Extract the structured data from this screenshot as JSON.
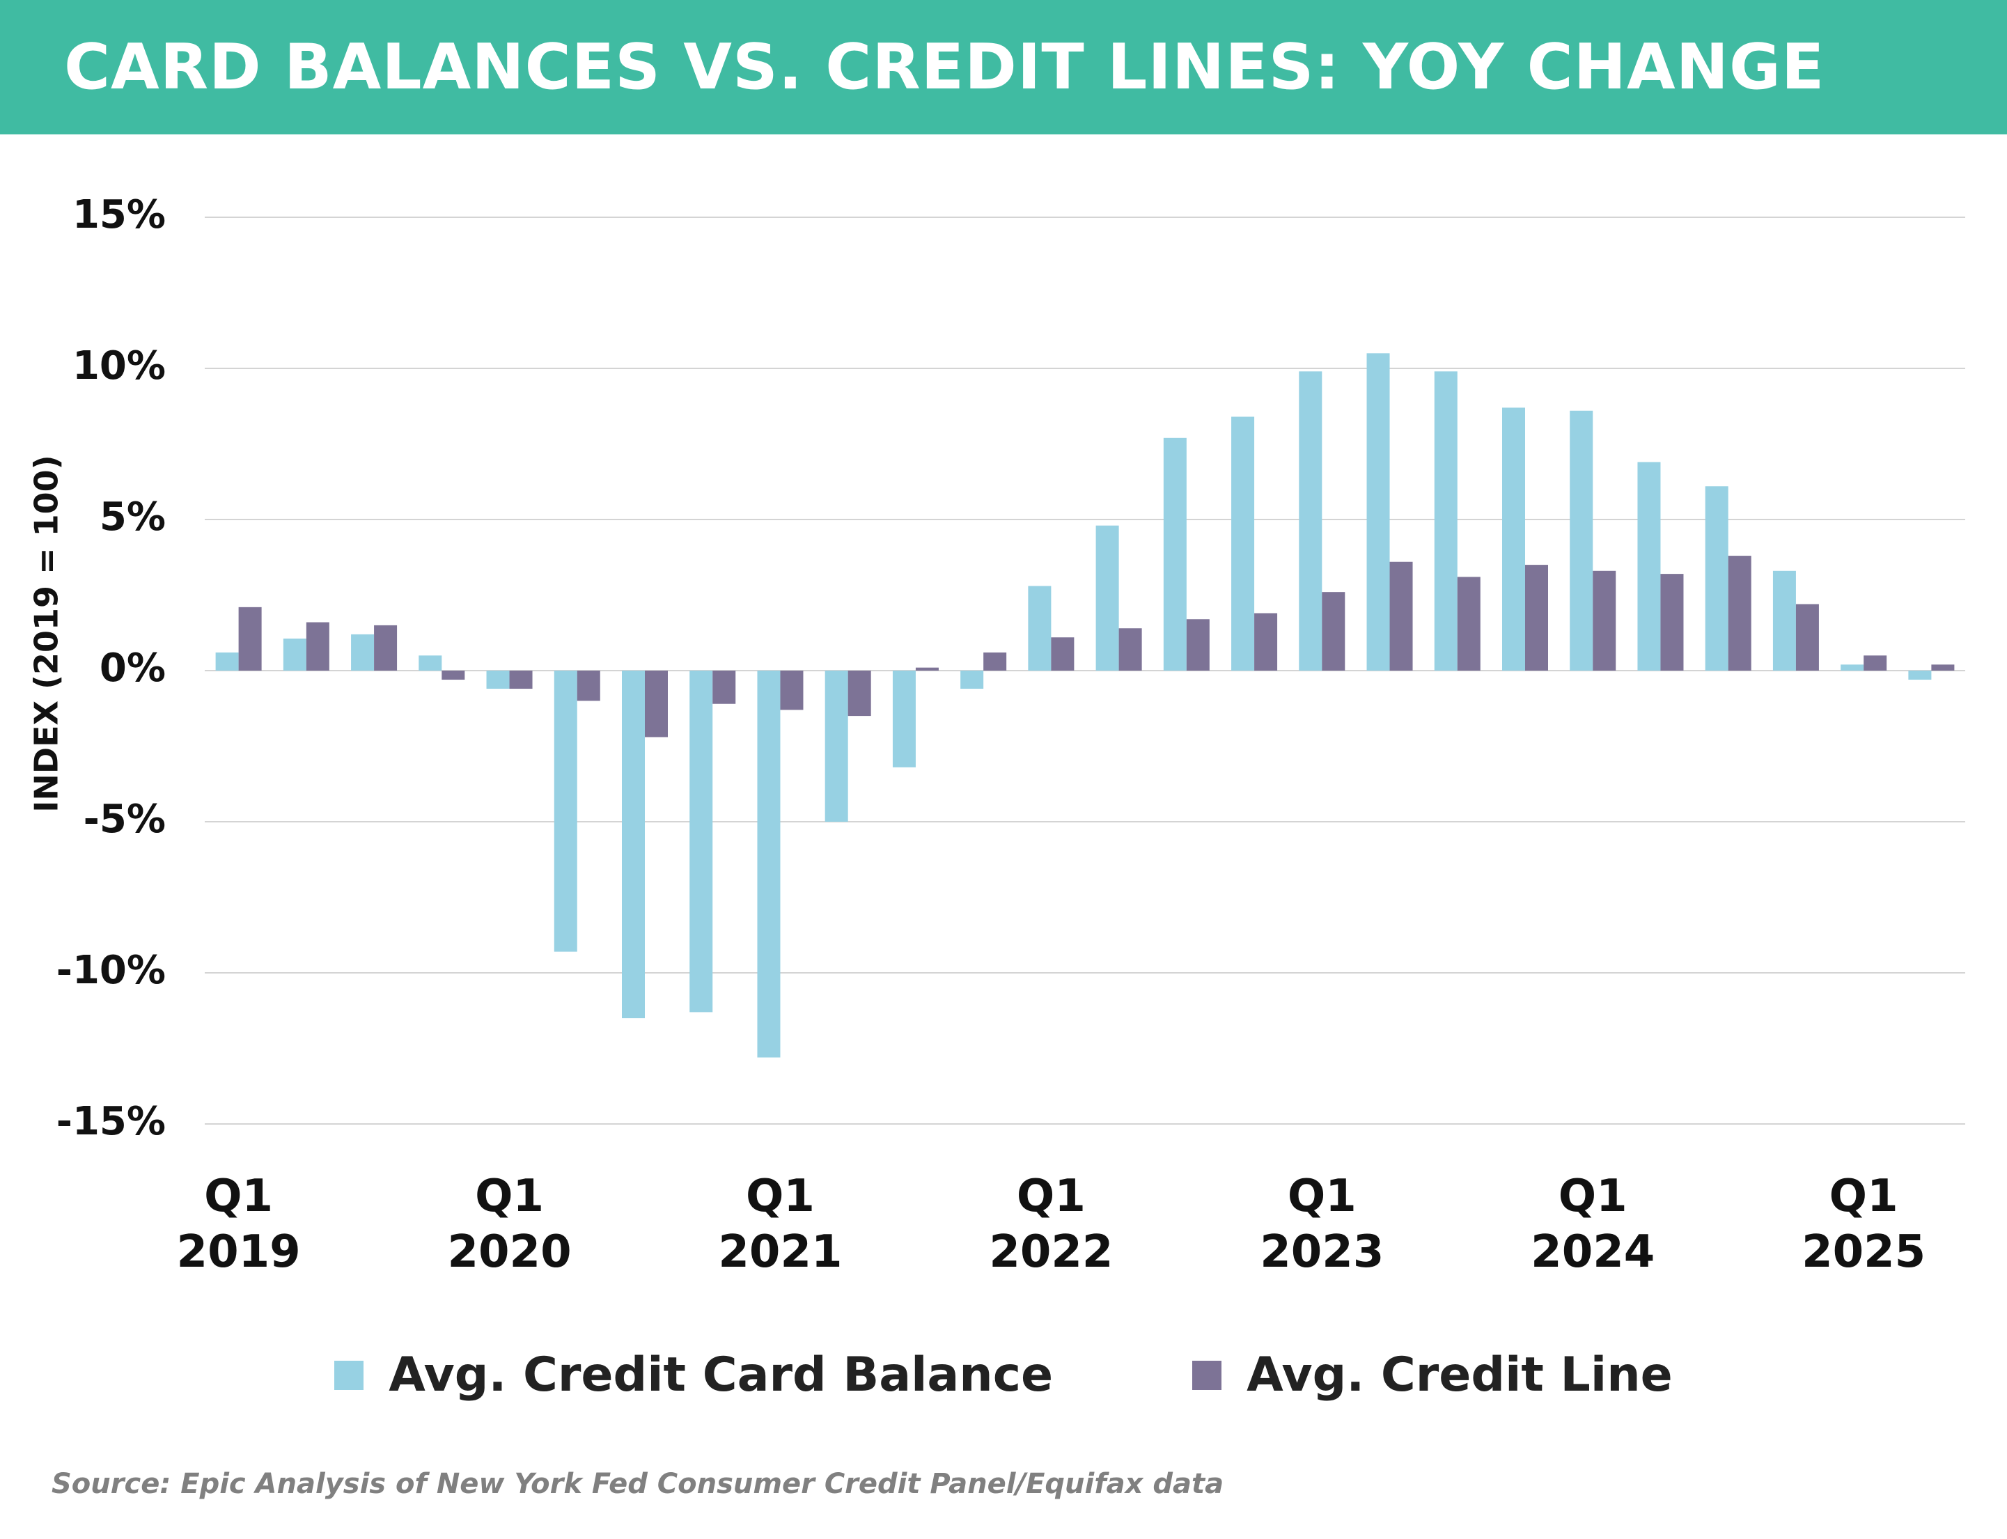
{
  "chart_data": {
    "type": "bar",
    "title": "CARD BALANCES VS. CREDIT LINES: YOY CHANGE",
    "y_label": "INDEX (2019 = 100)",
    "source": "Source: Epic Analysis of New York Fed Consumer Credit Panel/Equifax data",
    "categories": [
      "Q1\n2019",
      null,
      null,
      null,
      "Q1\n2020",
      null,
      null,
      null,
      "Q1\n2021",
      null,
      null,
      null,
      "Q1\n2022",
      null,
      null,
      null,
      "Q1\n2023",
      null,
      null,
      null,
      "Q1\n2024",
      null,
      null,
      null,
      "Q1\n2025",
      null
    ],
    "series": [
      {
        "name": "Avg. Credit Card Balance",
        "color": "#97d1e3",
        "values": [
          0.6,
          1.06,
          1.2,
          0.5,
          -0.6,
          -9.3,
          -11.5,
          -11.3,
          -12.8,
          -5.0,
          -3.2,
          -0.6,
          2.8,
          4.8,
          7.7,
          8.4,
          9.9,
          10.5,
          9.9,
          8.7,
          8.6,
          6.9,
          6.1,
          3.3,
          0.2,
          -0.3
        ]
      },
      {
        "name": "Avg. Credit Line",
        "color": "#7d7396",
        "values": [
          2.1,
          1.6,
          1.5,
          -0.3,
          -0.6,
          -1.0,
          -2.2,
          -1.1,
          -1.3,
          -1.5,
          0.1,
          0.6,
          1.1,
          1.4,
          1.7,
          1.9,
          2.6,
          3.6,
          3.1,
          3.5,
          3.3,
          3.2,
          3.8,
          2.2,
          0.5,
          0.2
        ]
      }
    ],
    "ylim": [
      -15,
      15
    ],
    "yticks": [
      {
        "value": -15,
        "label": "-15%"
      },
      {
        "value": -10,
        "label": "-10%"
      },
      {
        "value": -5,
        "label": "-5%"
      },
      {
        "value": 0,
        "label": "0%"
      },
      {
        "value": 5,
        "label": "5%"
      },
      {
        "value": 10,
        "label": "10%"
      },
      {
        "value": 15,
        "label": "15%"
      }
    ],
    "grid": true
  }
}
